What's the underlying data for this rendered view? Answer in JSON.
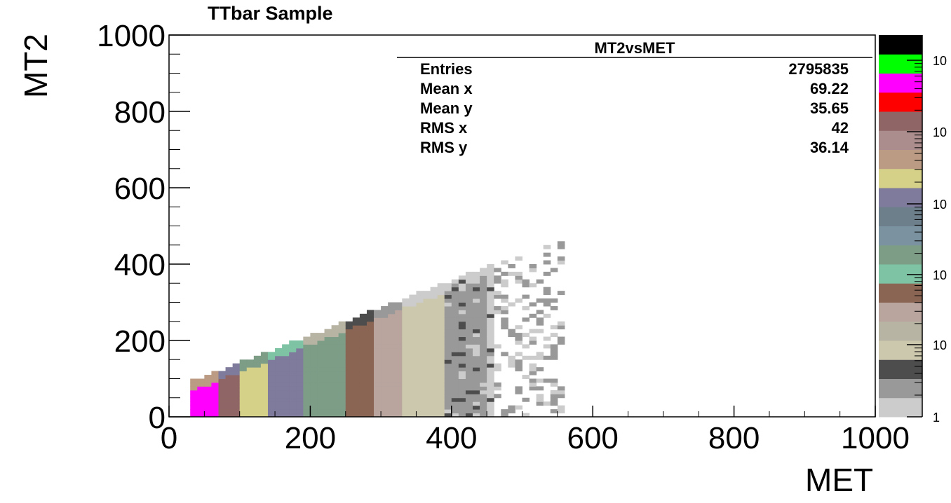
{
  "chart_data": {
    "type": "heatmap",
    "title": "TTbar Sample",
    "xlabel": "MET",
    "ylabel": "MT2",
    "xlim": [
      0,
      1000
    ],
    "ylim": [
      0,
      1000
    ],
    "x_ticks": [
      "0",
      "200",
      "400",
      "600",
      "800",
      "1000"
    ],
    "y_ticks": [
      "0",
      "200",
      "400",
      "600",
      "800",
      "1000"
    ],
    "z_scale": "log",
    "z_tick_labels": [
      "1",
      "10",
      "10",
      "10",
      "10",
      "10"
    ],
    "palette": [
      "#cccccc",
      "#999999",
      "#4d4d4d",
      "#ccc8ae",
      "#b8b4a3",
      "#b9a59e",
      "#8b6554",
      "#7fc3a5",
      "#7d9d87",
      "#7b93a0",
      "#6e7f8c",
      "#7f7b9c",
      "#d6d188",
      "#bb9b83",
      "#ab8d8e",
      "#8f6665",
      "#ff0000",
      "#ff00ff",
      "#00ff00",
      "#000000"
    ],
    "stats_box": {
      "name": "MT2vsMET",
      "rows": [
        {
          "label": "Entries",
          "value": "2795835"
        },
        {
          "label": "Mean x",
          "value": "69.22"
        },
        {
          "label": "Mean y",
          "value": "35.65"
        },
        {
          "label": "RMS x",
          "value": "42"
        },
        {
          "label": "RMS y",
          "value": "36.14"
        }
      ]
    },
    "density_regions": [
      {
        "met_max": 70,
        "mt2_max": 70,
        "level": 17
      },
      {
        "met_max": 100,
        "mt2_max": 90,
        "level": 15
      },
      {
        "met_max": 140,
        "mt2_max": 120,
        "level": 12
      },
      {
        "met_max": 190,
        "mt2_max": 160,
        "level": 11
      },
      {
        "met_max": 250,
        "mt2_max": 230,
        "level": 8
      },
      {
        "met_max": 290,
        "mt2_max": 270,
        "level": 6
      },
      {
        "met_max": 330,
        "mt2_max": 320,
        "level": 5
      },
      {
        "met_max": 390,
        "mt2_max": 380,
        "level": 3
      },
      {
        "met_max": 450,
        "mt2_max": 430,
        "level": 1
      }
    ]
  }
}
